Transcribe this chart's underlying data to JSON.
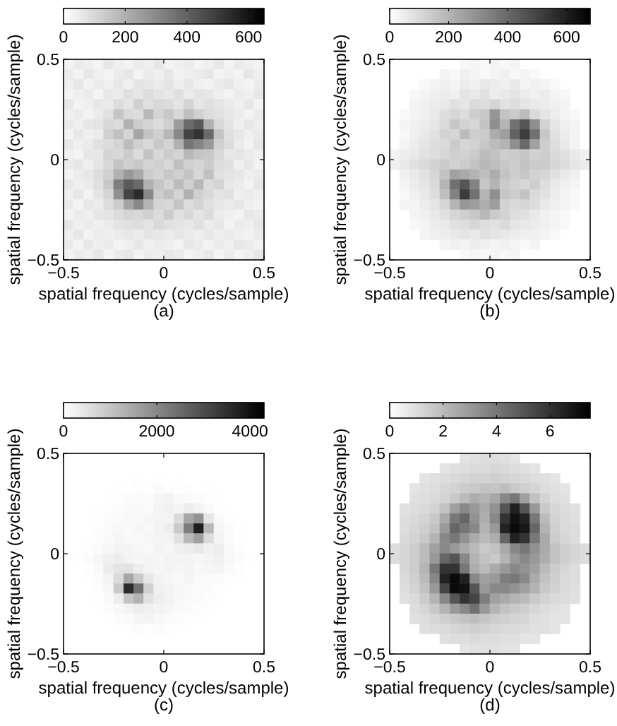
{
  "chart_data": [
    {
      "type": "heatmap",
      "xlabel": "spatial frequency (cycles/sample)",
      "ylabel": "spatial frequency (cycles/sample)",
      "annotations": [
        "(a)"
      ],
      "xlim": [
        -0.5,
        0.5
      ],
      "xticks": [
        -0.5,
        0,
        0.5
      ],
      "ylim": [
        -0.5,
        0.5
      ],
      "yticks": [
        -0.5,
        0,
        0.5
      ],
      "clim": [
        0,
        650
      ],
      "cticks": [
        0,
        200,
        400,
        600
      ],
      "cells": [
        [
          30,
          50,
          40,
          30,
          60,
          40,
          30,
          50,
          40,
          60,
          30,
          40,
          50,
          30,
          40,
          60,
          30,
          50,
          40,
          30
        ],
        [
          50,
          30,
          60,
          40,
          30,
          50,
          60,
          30,
          50,
          40,
          60,
          30,
          40,
          50,
          60,
          30,
          40,
          30,
          60,
          40
        ],
        [
          40,
          60,
          30,
          50,
          40,
          60,
          40,
          70,
          60,
          50,
          70,
          40,
          60,
          40,
          30,
          50,
          60,
          40,
          30,
          50
        ],
        [
          30,
          40,
          50,
          30,
          60,
          50,
          80,
          60,
          90,
          70,
          60,
          80,
          50,
          70,
          60,
          40,
          30,
          50,
          40,
          60
        ],
        [
          60,
          30,
          40,
          60,
          50,
          90,
          70,
          120,
          80,
          100,
          90,
          70,
          110,
          60,
          80,
          70,
          50,
          40,
          60,
          30
        ],
        [
          40,
          50,
          30,
          50,
          80,
          150,
          100,
          90,
          180,
          110,
          140,
          100,
          160,
          120,
          90,
          80,
          60,
          50,
          30,
          50
        ],
        [
          50,
          40,
          60,
          70,
          100,
          90,
          200,
          130,
          110,
          90,
          120,
          250,
          380,
          420,
          200,
          100,
          70,
          40,
          60,
          40
        ],
        [
          30,
          60,
          40,
          50,
          120,
          160,
          110,
          230,
          150,
          120,
          180,
          300,
          480,
          520,
          380,
          150,
          80,
          60,
          40,
          50
        ],
        [
          60,
          40,
          50,
          80,
          90,
          110,
          170,
          120,
          100,
          140,
          110,
          200,
          350,
          310,
          260,
          120,
          90,
          50,
          30,
          60
        ],
        [
          40,
          30,
          60,
          60,
          110,
          100,
          130,
          90,
          150,
          100,
          130,
          110,
          180,
          150,
          140,
          100,
          60,
          70,
          50,
          40
        ],
        [
          50,
          60,
          40,
          70,
          100,
          150,
          120,
          140,
          110,
          120,
          100,
          160,
          120,
          110,
          130,
          90,
          80,
          40,
          60,
          30
        ],
        [
          30,
          50,
          60,
          90,
          120,
          200,
          260,
          220,
          130,
          110,
          140,
          120,
          150,
          100,
          160,
          80,
          70,
          60,
          40,
          50
        ],
        [
          60,
          40,
          50,
          80,
          140,
          330,
          420,
          380,
          200,
          150,
          110,
          170,
          120,
          180,
          90,
          110,
          60,
          50,
          30,
          60
        ],
        [
          40,
          60,
          30,
          70,
          110,
          280,
          480,
          540,
          300,
          130,
          160,
          110,
          200,
          120,
          100,
          70,
          80,
          40,
          50,
          40
        ],
        [
          50,
          30,
          60,
          50,
          90,
          130,
          230,
          300,
          190,
          110,
          100,
          150,
          90,
          110,
          80,
          60,
          50,
          60,
          40,
          30
        ],
        [
          30,
          50,
          40,
          60,
          70,
          90,
          110,
          100,
          120,
          90,
          130,
          80,
          100,
          70,
          90,
          50,
          40,
          30,
          60,
          50
        ],
        [
          60,
          40,
          50,
          40,
          50,
          70,
          80,
          90,
          70,
          100,
          80,
          70,
          60,
          80,
          50,
          60,
          30,
          50,
          40,
          60
        ],
        [
          40,
          60,
          30,
          50,
          40,
          50,
          60,
          50,
          70,
          60,
          50,
          60,
          50,
          40,
          60,
          40,
          50,
          40,
          30,
          50
        ],
        [
          50,
          30,
          60,
          40,
          50,
          30,
          40,
          60,
          40,
          50,
          40,
          30,
          60,
          50,
          30,
          50,
          40,
          60,
          50,
          30
        ],
        [
          30,
          50,
          40,
          60,
          30,
          50,
          60,
          30,
          50,
          40,
          60,
          50,
          30,
          40,
          60,
          30,
          50,
          30,
          40,
          60
        ]
      ]
    },
    {
      "type": "heatmap",
      "xlabel": "spatial frequency (cycles/sample)",
      "ylabel": "spatial frequency (cycles/sample)",
      "annotations": [
        "(b)"
      ],
      "xlim": [
        -0.5,
        0.5
      ],
      "xticks": [
        -0.5,
        0,
        0.5
      ],
      "ylim": [
        -0.5,
        0.5
      ],
      "yticks": [
        -0.5,
        0,
        0.5
      ],
      "clim": [
        0,
        680
      ],
      "cticks": [
        0,
        200,
        400,
        600
      ],
      "cells": [
        [
          null,
          null,
          null,
          null,
          null,
          null,
          null,
          20,
          30,
          20,
          30,
          20,
          30,
          null,
          null,
          null,
          null,
          null,
          null,
          null
        ],
        [
          null,
          null,
          null,
          null,
          null,
          30,
          20,
          40,
          30,
          20,
          30,
          40,
          20,
          30,
          20,
          null,
          null,
          null,
          null,
          null
        ],
        [
          null,
          null,
          null,
          20,
          30,
          40,
          30,
          50,
          40,
          60,
          50,
          40,
          60,
          30,
          40,
          30,
          20,
          null,
          null,
          null
        ],
        [
          null,
          null,
          20,
          30,
          40,
          50,
          40,
          70,
          60,
          80,
          50,
          60,
          70,
          50,
          40,
          50,
          30,
          20,
          null,
          null
        ],
        [
          null,
          null,
          30,
          40,
          50,
          60,
          80,
          70,
          100,
          90,
          110,
          80,
          90,
          70,
          60,
          50,
          40,
          30,
          null,
          null
        ],
        [
          null,
          20,
          30,
          40,
          60,
          90,
          110,
          90,
          130,
          150,
          280,
          160,
          140,
          180,
          100,
          70,
          50,
          30,
          20,
          null
        ],
        [
          null,
          30,
          40,
          50,
          70,
          100,
          150,
          120,
          110,
          160,
          300,
          200,
          380,
          450,
          300,
          120,
          70,
          40,
          30,
          null
        ],
        [
          null,
          20,
          40,
          60,
          80,
          120,
          110,
          180,
          130,
          140,
          220,
          260,
          420,
          520,
          380,
          150,
          80,
          50,
          30,
          null
        ],
        [
          null,
          30,
          50,
          70,
          90,
          100,
          140,
          110,
          120,
          150,
          180,
          200,
          300,
          400,
          250,
          130,
          90,
          60,
          30,
          null
        ],
        [
          30,
          50,
          60,
          80,
          90,
          110,
          130,
          120,
          140,
          180,
          160,
          130,
          140,
          150,
          120,
          130,
          100,
          80,
          60,
          40
        ],
        [
          40,
          60,
          80,
          100,
          120,
          140,
          120,
          140,
          160,
          190,
          170,
          150,
          130,
          160,
          140,
          140,
          110,
          90,
          70,
          50
        ],
        [
          null,
          40,
          60,
          80,
          110,
          160,
          250,
          230,
          200,
          170,
          220,
          160,
          130,
          150,
          120,
          110,
          80,
          60,
          40,
          null
        ],
        [
          null,
          30,
          50,
          70,
          100,
          200,
          380,
          450,
          330,
          150,
          200,
          140,
          120,
          110,
          130,
          90,
          60,
          40,
          30,
          null
        ],
        [
          null,
          20,
          40,
          60,
          90,
          170,
          330,
          520,
          380,
          200,
          300,
          150,
          130,
          160,
          100,
          80,
          50,
          30,
          20,
          null
        ],
        [
          null,
          30,
          30,
          50,
          70,
          110,
          200,
          280,
          260,
          220,
          260,
          120,
          100,
          110,
          90,
          60,
          40,
          30,
          20,
          null
        ],
        [
          null,
          null,
          30,
          40,
          60,
          80,
          110,
          130,
          150,
          190,
          140,
          120,
          90,
          80,
          60,
          40,
          30,
          20,
          null,
          null
        ],
        [
          null,
          null,
          20,
          30,
          50,
          60,
          80,
          90,
          110,
          90,
          80,
          100,
          70,
          60,
          50,
          40,
          30,
          20,
          null,
          null
        ],
        [
          null,
          null,
          null,
          30,
          40,
          50,
          60,
          70,
          60,
          80,
          70,
          60,
          50,
          40,
          40,
          30,
          20,
          null,
          null,
          null
        ],
        [
          null,
          null,
          null,
          null,
          null,
          30,
          40,
          30,
          50,
          40,
          30,
          40,
          30,
          20,
          30,
          null,
          null,
          null,
          null,
          null
        ],
        [
          null,
          null,
          null,
          null,
          null,
          null,
          null,
          20,
          30,
          20,
          30,
          20,
          30,
          null,
          null,
          null,
          null,
          null,
          null,
          null
        ]
      ]
    },
    {
      "type": "heatmap",
      "xlabel": "spatial frequency (cycles/sample)",
      "ylabel": "spatial frequency (cycles/sample)",
      "annotations": [
        "(c)"
      ],
      "xlim": [
        -0.5,
        0.5
      ],
      "xticks": [
        -0.5,
        0,
        0.5
      ],
      "ylim": [
        -0.5,
        0.5
      ],
      "yticks": [
        -0.5,
        0,
        0.5
      ],
      "clim": [
        0,
        4300
      ],
      "cticks": [
        0,
        2000,
        4000
      ],
      "cells": [
        [
          0,
          0,
          0,
          0,
          0,
          0,
          0,
          0,
          0,
          0,
          0,
          0,
          0,
          0,
          0,
          0,
          0,
          0,
          0,
          0
        ],
        [
          0,
          0,
          0,
          0,
          0,
          0,
          0,
          0,
          0,
          0,
          0,
          0,
          0,
          0,
          0,
          0,
          0,
          0,
          0,
          0
        ],
        [
          0,
          0,
          0,
          0,
          0,
          0,
          0,
          20,
          0,
          20,
          0,
          20,
          0,
          0,
          0,
          0,
          0,
          0,
          0,
          0
        ],
        [
          0,
          0,
          0,
          0,
          0,
          20,
          0,
          40,
          20,
          60,
          40,
          20,
          40,
          0,
          20,
          0,
          0,
          0,
          0,
          0
        ],
        [
          0,
          0,
          0,
          0,
          20,
          40,
          60,
          80,
          60,
          150,
          200,
          100,
          80,
          60,
          40,
          20,
          0,
          0,
          0,
          0
        ],
        [
          0,
          0,
          0,
          20,
          40,
          60,
          100,
          120,
          80,
          200,
          250,
          180,
          300,
          200,
          80,
          40,
          20,
          0,
          0,
          0
        ],
        [
          0,
          0,
          0,
          20,
          60,
          80,
          120,
          100,
          150,
          180,
          200,
          600,
          1500,
          1800,
          400,
          100,
          40,
          0,
          0,
          0
        ],
        [
          0,
          0,
          0,
          40,
          80,
          120,
          100,
          150,
          120,
          200,
          300,
          900,
          2200,
          3800,
          1200,
          150,
          60,
          20,
          0,
          0
        ],
        [
          0,
          0,
          20,
          40,
          100,
          150,
          120,
          100,
          150,
          180,
          200,
          500,
          1200,
          1600,
          600,
          200,
          80,
          20,
          0,
          0
        ],
        [
          0,
          0,
          20,
          60,
          150,
          200,
          180,
          150,
          120,
          200,
          150,
          250,
          300,
          400,
          250,
          300,
          100,
          40,
          0,
          0
        ],
        [
          0,
          20,
          60,
          150,
          250,
          300,
          200,
          150,
          180,
          150,
          200,
          180,
          200,
          150,
          200,
          250,
          120,
          60,
          20,
          0
        ],
        [
          0,
          0,
          40,
          100,
          300,
          450,
          500,
          300,
          200,
          150,
          180,
          150,
          200,
          120,
          150,
          180,
          80,
          40,
          0,
          0
        ],
        [
          0,
          0,
          20,
          60,
          200,
          600,
          1500,
          900,
          400,
          200,
          150,
          120,
          180,
          100,
          80,
          60,
          40,
          20,
          0,
          0
        ],
        [
          0,
          0,
          0,
          40,
          150,
          900,
          3600,
          2400,
          800,
          250,
          200,
          150,
          100,
          80,
          60,
          40,
          20,
          0,
          0,
          0
        ],
        [
          0,
          0,
          0,
          20,
          100,
          300,
          1000,
          1300,
          500,
          300,
          200,
          120,
          100,
          60,
          40,
          20,
          0,
          0,
          0,
          0
        ],
        [
          0,
          0,
          0,
          20,
          60,
          120,
          200,
          300,
          250,
          200,
          150,
          100,
          80,
          40,
          20,
          0,
          0,
          0,
          0,
          0
        ],
        [
          0,
          0,
          0,
          0,
          20,
          60,
          100,
          150,
          200,
          120,
          80,
          60,
          40,
          20,
          0,
          0,
          0,
          0,
          0,
          0
        ],
        [
          0,
          0,
          0,
          0,
          0,
          20,
          40,
          60,
          40,
          60,
          40,
          20,
          20,
          0,
          0,
          0,
          0,
          0,
          0,
          0
        ],
        [
          0,
          0,
          0,
          0,
          0,
          0,
          0,
          0,
          0,
          0,
          0,
          0,
          0,
          0,
          0,
          0,
          0,
          0,
          0,
          0
        ],
        [
          0,
          0,
          0,
          0,
          0,
          0,
          0,
          0,
          0,
          0,
          0,
          0,
          0,
          0,
          0,
          0,
          0,
          0,
          0,
          0
        ]
      ]
    },
    {
      "type": "heatmap",
      "xlabel": "spatial frequency (cycles/sample)",
      "ylabel": "spatial frequency (cycles/sample)",
      "annotations": [
        "(d)"
      ],
      "xlim": [
        -0.5,
        0.5
      ],
      "xticks": [
        -0.5,
        0,
        0.5
      ],
      "ylim": [
        -0.5,
        0.5
      ],
      "yticks": [
        -0.5,
        0,
        0.5
      ],
      "clim": [
        0,
        7.5
      ],
      "cticks": [
        0,
        2,
        4,
        6
      ],
      "cells": [
        [
          null,
          null,
          null,
          null,
          null,
          null,
          null,
          0.8,
          0.9,
          1.0,
          1.0,
          0.9,
          0.8,
          null,
          null,
          null,
          null,
          null,
          null,
          null
        ],
        [
          null,
          null,
          null,
          null,
          null,
          0.8,
          0.9,
          1.0,
          1.1,
          1.1,
          1.2,
          1.1,
          1.0,
          0.9,
          0.8,
          null,
          null,
          null,
          null,
          null
        ],
        [
          null,
          null,
          null,
          0.8,
          0.9,
          1.0,
          1.1,
          1.2,
          1.3,
          1.3,
          1.4,
          1.3,
          1.2,
          1.1,
          1.0,
          0.9,
          0.8,
          null,
          null,
          null
        ],
        [
          null,
          null,
          0.8,
          0.9,
          1.0,
          1.2,
          1.3,
          1.5,
          1.6,
          1.8,
          1.7,
          1.9,
          1.6,
          1.4,
          1.2,
          1.0,
          0.9,
          0.8,
          null,
          null
        ],
        [
          null,
          null,
          0.9,
          1.0,
          1.1,
          1.3,
          1.6,
          2.0,
          2.4,
          2.2,
          2.6,
          3.5,
          4.0,
          2.8,
          1.8,
          1.3,
          1.0,
          0.9,
          null,
          null
        ],
        [
          null,
          0.9,
          1.0,
          1.1,
          1.3,
          1.8,
          2.8,
          3.5,
          3.0,
          2.5,
          3.2,
          5.0,
          6.5,
          5.0,
          3.0,
          1.6,
          1.2,
          1.0,
          0.9,
          null
        ],
        [
          null,
          1.0,
          1.1,
          1.3,
          1.6,
          2.5,
          4.0,
          4.5,
          3.2,
          2.4,
          3.5,
          6.0,
          7.0,
          6.5,
          4.0,
          2.0,
          1.3,
          1.1,
          0.9,
          null
        ],
        [
          null,
          1.0,
          1.2,
          1.4,
          1.8,
          3.0,
          4.5,
          4.0,
          3.5,
          2.2,
          3.0,
          6.5,
          7.2,
          6.8,
          4.5,
          2.2,
          1.4,
          1.1,
          1.0,
          null
        ],
        [
          null,
          1.1,
          1.3,
          1.6,
          2.2,
          3.5,
          4.0,
          3.2,
          2.5,
          2.0,
          2.4,
          4.5,
          6.5,
          6.0,
          4.0,
          2.5,
          1.5,
          1.2,
          1.0,
          null
        ],
        [
          1.0,
          1.2,
          1.5,
          2.0,
          2.8,
          3.5,
          3.0,
          2.5,
          2.0,
          1.6,
          1.8,
          2.5,
          3.5,
          4.0,
          3.2,
          2.5,
          1.8,
          1.4,
          1.2,
          1.0
        ],
        [
          1.0,
          1.2,
          1.5,
          2.0,
          3.0,
          4.5,
          5.0,
          3.5,
          2.2,
          1.8,
          1.6,
          2.2,
          3.0,
          3.5,
          3.0,
          2.4,
          1.8,
          1.4,
          1.2,
          1.0
        ],
        [
          null,
          1.2,
          1.5,
          2.2,
          4.0,
          6.0,
          6.0,
          4.0,
          2.4,
          2.0,
          2.5,
          3.0,
          3.5,
          3.2,
          2.8,
          2.0,
          1.5,
          1.2,
          1.0,
          null
        ],
        [
          null,
          1.1,
          1.4,
          2.0,
          3.5,
          6.5,
          7.2,
          6.5,
          3.5,
          2.8,
          3.0,
          3.8,
          4.0,
          3.5,
          2.5,
          1.8,
          1.4,
          1.1,
          1.0,
          null
        ],
        [
          null,
          1.0,
          1.3,
          1.8,
          3.0,
          5.5,
          7.2,
          7.0,
          5.0,
          3.0,
          3.5,
          3.5,
          3.2,
          2.8,
          2.2,
          1.6,
          1.3,
          1.1,
          0.9,
          null
        ],
        [
          null,
          0.9,
          1.1,
          1.5,
          2.2,
          3.5,
          5.0,
          6.0,
          5.5,
          3.8,
          2.8,
          2.5,
          2.2,
          2.0,
          1.6,
          1.3,
          1.1,
          1.0,
          0.9,
          null
        ],
        [
          null,
          null,
          1.0,
          1.2,
          1.6,
          2.2,
          3.0,
          3.5,
          4.2,
          3.0,
          2.2,
          1.8,
          1.6,
          1.4,
          1.2,
          1.0,
          0.9,
          0.8,
          null,
          null
        ],
        [
          null,
          null,
          0.9,
          1.0,
          1.2,
          1.4,
          1.6,
          1.8,
          1.9,
          1.7,
          1.5,
          1.4,
          1.3,
          1.2,
          1.0,
          0.9,
          0.8,
          0.8,
          null,
          null
        ],
        [
          null,
          null,
          null,
          0.9,
          1.0,
          1.1,
          1.2,
          1.3,
          1.4,
          1.3,
          1.2,
          1.1,
          1.1,
          1.0,
          0.9,
          0.9,
          0.8,
          null,
          null,
          null
        ],
        [
          null,
          null,
          null,
          null,
          null,
          0.9,
          1.0,
          1.0,
          1.1,
          1.0,
          1.0,
          0.9,
          0.9,
          0.8,
          0.8,
          null,
          null,
          null,
          null,
          null
        ],
        [
          null,
          null,
          null,
          null,
          null,
          null,
          null,
          0.8,
          0.9,
          0.9,
          0.9,
          0.8,
          0.8,
          null,
          null,
          null,
          null,
          null,
          null,
          null
        ]
      ]
    }
  ]
}
